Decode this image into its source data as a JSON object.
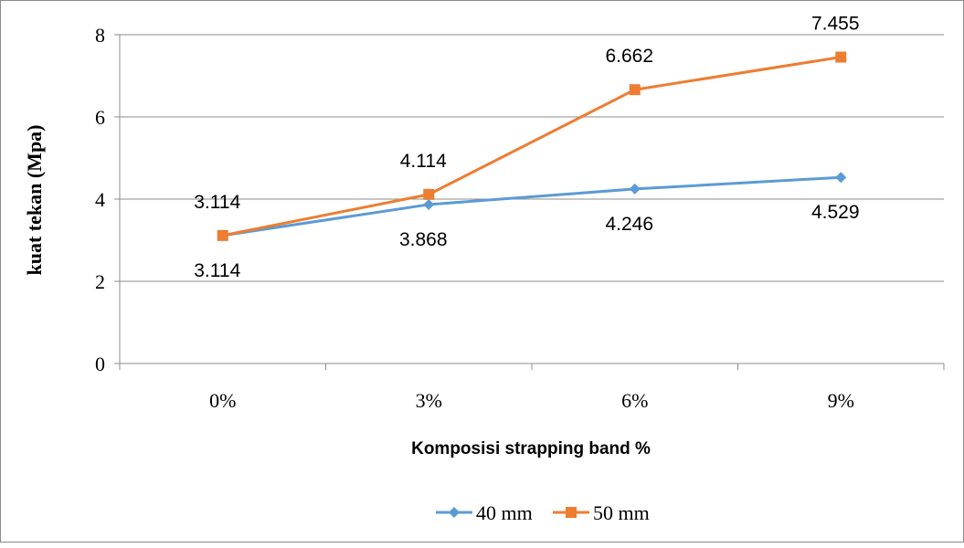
{
  "chart_data": {
    "type": "line",
    "title": "",
    "xlabel": "Komposisi strapping band %",
    "ylabel": "kuat tekan (Mpa)",
    "categories": [
      "0%",
      "3%",
      "6%",
      "9%"
    ],
    "ylim": [
      0,
      8
    ],
    "yticks": [
      0,
      2,
      4,
      6,
      8
    ],
    "grid": true,
    "legend_position": "bottom",
    "series": [
      {
        "name": "40 mm",
        "values": [
          3.114,
          3.868,
          4.246,
          4.529
        ],
        "labels": [
          "3.114",
          "3.868",
          "4.246",
          "4.529"
        ],
        "color": "#5B9BD5",
        "marker": "diamond"
      },
      {
        "name": "50 mm",
        "values": [
          3.114,
          4.114,
          6.662,
          7.455
        ],
        "labels": [
          "3.114",
          "4.114",
          "6.662",
          "7.455"
        ],
        "color": "#ED7D31",
        "marker": "square"
      }
    ]
  }
}
